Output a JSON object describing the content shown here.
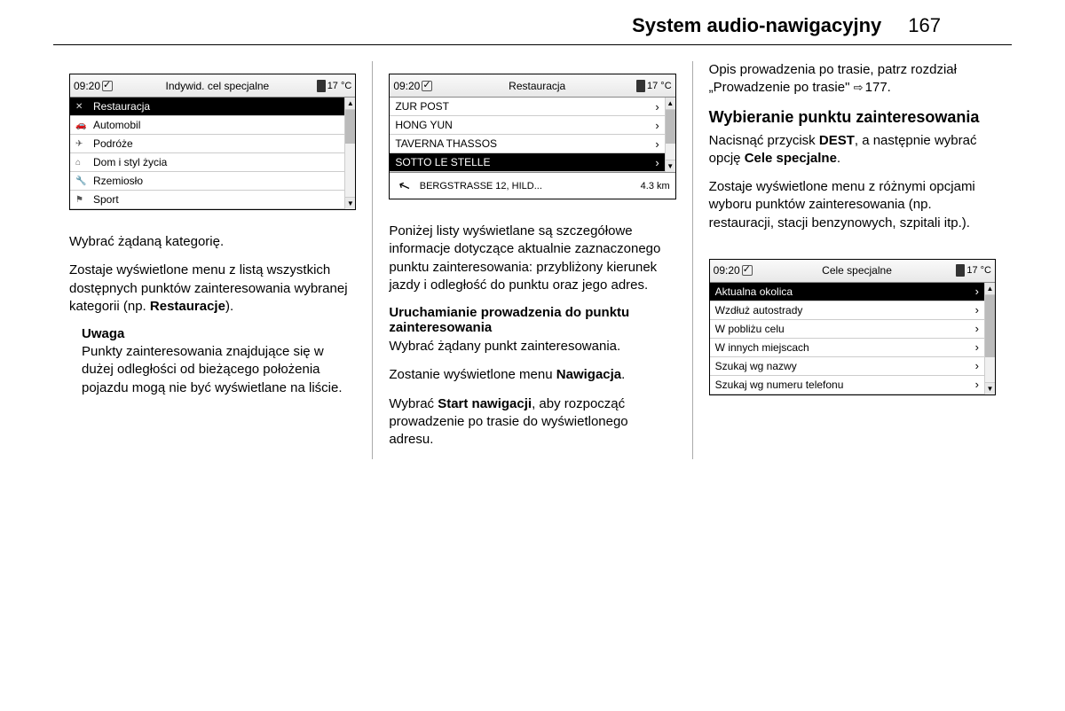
{
  "header": {
    "title": "System audio-nawigacyjny",
    "page": "167"
  },
  "screen1": {
    "time": "09:20",
    "title": "Indywid. cel specjalne",
    "temp": "17 °C",
    "rows": [
      {
        "icon": "✕",
        "label": "Restauracja",
        "selected": true
      },
      {
        "icon": "🚗",
        "label": "Automobil"
      },
      {
        "icon": "✈",
        "label": "Podróże"
      },
      {
        "icon": "⌂",
        "label": "Dom i styl życia"
      },
      {
        "icon": "🔧",
        "label": "Rzemiosło"
      },
      {
        "icon": "⚑",
        "label": "Sport"
      }
    ]
  },
  "screen2": {
    "time": "09:20",
    "title": "Restauracja",
    "temp": "17 °C",
    "rows": [
      {
        "label": "ZUR POST",
        "arrow": "›"
      },
      {
        "label": "HONG YUN",
        "arrow": "›"
      },
      {
        "label": "TAVERNA THASSOS",
        "arrow": "›"
      },
      {
        "label": "SOTTO LE STELLE",
        "arrow": "›",
        "selected": true
      }
    ],
    "detail_addr": "BERGSTRASSE  12, HILD...",
    "detail_dist": "4.3  km"
  },
  "screen3": {
    "time": "09:20",
    "title": "Cele specjalne",
    "temp": "17 °C",
    "rows": [
      {
        "label": "Aktualna okolica",
        "arrow": "›",
        "selected": true
      },
      {
        "label": "Wzdłuż autostrady",
        "arrow": "›"
      },
      {
        "label": "W pobliżu celu",
        "arrow": "›"
      },
      {
        "label": "W innych miejscach",
        "arrow": "›"
      },
      {
        "label": "Szukaj wg nazwy",
        "arrow": "›"
      },
      {
        "label": "Szukaj wg numeru telefonu",
        "arrow": "›"
      }
    ]
  },
  "col1": {
    "p1": "Wybrać żądaną kategorię.",
    "p2a": "Zostaje wyświetlone menu z listą wszystkich dostępnych punktów zainteresowania wybranej kategorii (np. ",
    "p2b": "Restauracje",
    "p2c": ").",
    "note_h": "Uwaga",
    "note": "Punkty zainteresowania znajdujące się w dużej odległości od bieżącego położenia pojazdu mogą nie być wyświetlane na liście."
  },
  "col2": {
    "p1": "Poniżej listy wyświetlane są szczegółowe informacje dotyczące aktualnie zaznaczonego punktu zainteresowania: przybliżony kierunek jazdy i odległość do punktu oraz jego adres.",
    "h": "Uruchamianie prowadzenia do punktu zainteresowania",
    "p2": "Wybrać żądany punkt zainteresowania.",
    "p3a": "Zostanie wyświetlone menu ",
    "p3b": "Nawigacja",
    "p3c": ".",
    "p4a": "Wybrać ",
    "p4b": "Start nawigacji",
    "p4c": ", aby rozpocząć prowadzenie po trasie do wyświetlonego adresu."
  },
  "col3": {
    "p1a": "Opis prowadzenia po trasie, patrz rozdział „Prowadzenie po trasie\" ",
    "p1b": "⇨",
    "p1c": " 177.",
    "h": "Wybieranie punktu zainteresowania",
    "p2a": "Nacisnąć przycisk ",
    "p2b": "DEST",
    "p2c": ", a następnie wybrać opcję ",
    "p2d": "Cele specjalne",
    "p2e": ".",
    "p3": "Zostaje wyświetlone menu z różnymi opcjami wyboru punktów zainteresowania (np. restauracji, stacji benzynowych, szpitali itp.)."
  }
}
